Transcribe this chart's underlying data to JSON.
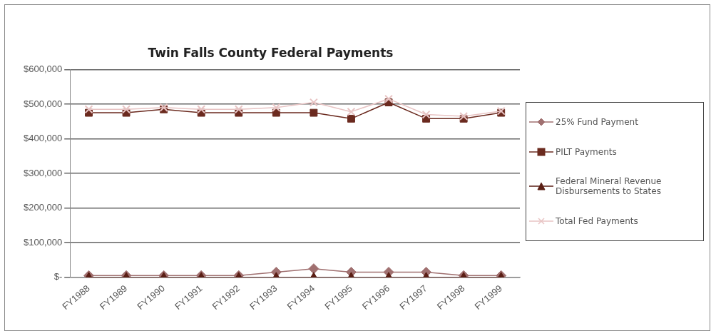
{
  "chart_data": {
    "type": "line",
    "title": "Twin Falls County Federal Payments",
    "categories": [
      "FY1988",
      "FY1989",
      "FY1990",
      "FY1991",
      "FY1992",
      "FY1993",
      "FY1994",
      "FY1995",
      "FY1996",
      "FY1997",
      "FY1998",
      "FY1999"
    ],
    "series": [
      {
        "name": "25% Fund Payment",
        "color": "#a07070",
        "marker": "diamond",
        "values": [
          5000,
          5000,
          5000,
          5000,
          5000,
          15000,
          25000,
          15000,
          15000,
          15000,
          5000,
          5000
        ]
      },
      {
        "name": "PILT Payments",
        "color": "#6b2a1f",
        "marker": "square",
        "values": [
          475000,
          475000,
          485000,
          475000,
          475000,
          475000,
          475000,
          458000,
          505000,
          458000,
          458000,
          475000
        ]
      },
      {
        "name": "Federal Mineral Revenue Disbursements to States",
        "color": "#5a1e14",
        "marker": "triangle",
        "values": [
          0,
          0,
          0,
          0,
          0,
          0,
          0,
          0,
          0,
          0,
          0,
          0
        ]
      },
      {
        "name": "Total Fed Payments",
        "color": "#e8c4c4",
        "marker": "cross",
        "values": [
          485000,
          485000,
          490000,
          485000,
          485000,
          490000,
          505000,
          478000,
          515000,
          470000,
          465000,
          480000
        ]
      }
    ],
    "ylim": [
      0,
      600000
    ],
    "yticks": [
      {
        "value": 0,
        "label": "$-"
      },
      {
        "value": 100000,
        "label": "$100,000"
      },
      {
        "value": 200000,
        "label": "$200,000"
      },
      {
        "value": 300000,
        "label": "$300,000"
      },
      {
        "value": 400000,
        "label": "$400,000"
      },
      {
        "value": 500000,
        "label": "$500,000"
      },
      {
        "value": 600000,
        "label": "$600,000"
      }
    ],
    "grid": "y",
    "legend": "right"
  }
}
